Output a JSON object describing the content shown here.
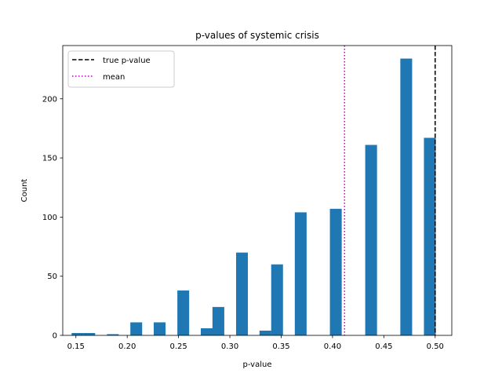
{
  "chart_data": {
    "type": "bar",
    "title": "p-values of systemic crisis",
    "xlabel": "p-value",
    "ylabel": "Count",
    "xlim": [
      0.1372,
      0.5162
    ],
    "ylim": [
      0,
      245
    ],
    "xticks": [
      0.15,
      0.2,
      0.25,
      0.3,
      0.35,
      0.4,
      0.45,
      0.5
    ],
    "xtick_labels": [
      "0.15",
      "0.20",
      "0.25",
      "0.30",
      "0.35",
      "0.40",
      "0.45",
      "0.50"
    ],
    "yticks": [
      0,
      50,
      100,
      150,
      200
    ],
    "ytick_labels": [
      "0",
      "50",
      "100",
      "150",
      "200"
    ],
    "bar_color": "#1f77b4",
    "bar_width": 0.0115,
    "bars": [
      {
        "x": 0.1516,
        "count": 2
      },
      {
        "x": 0.163,
        "count": 2
      },
      {
        "x": 0.186,
        "count": 1
      },
      {
        "x": 0.2088,
        "count": 11
      },
      {
        "x": 0.2316,
        "count": 11
      },
      {
        "x": 0.2546,
        "count": 38
      },
      {
        "x": 0.2774,
        "count": 6
      },
      {
        "x": 0.2888,
        "count": 24
      },
      {
        "x": 0.3118,
        "count": 70
      },
      {
        "x": 0.3346,
        "count": 4
      },
      {
        "x": 0.346,
        "count": 60
      },
      {
        "x": 0.369,
        "count": 104
      },
      {
        "x": 0.4032,
        "count": 107
      },
      {
        "x": 0.4376,
        "count": 161
      },
      {
        "x": 0.4718,
        "count": 234
      },
      {
        "x": 0.4948,
        "count": 167
      }
    ],
    "reference_lines": [
      {
        "name": "true p-value",
        "x": 0.5,
        "color": "#000000",
        "style": "dashed"
      },
      {
        "name": "mean",
        "x": 0.4117,
        "color": "#bf00bf",
        "style": "dotted"
      }
    ],
    "legend": {
      "placement": "top-left",
      "entries": [
        "true p-value",
        "mean"
      ]
    },
    "grid": false
  }
}
